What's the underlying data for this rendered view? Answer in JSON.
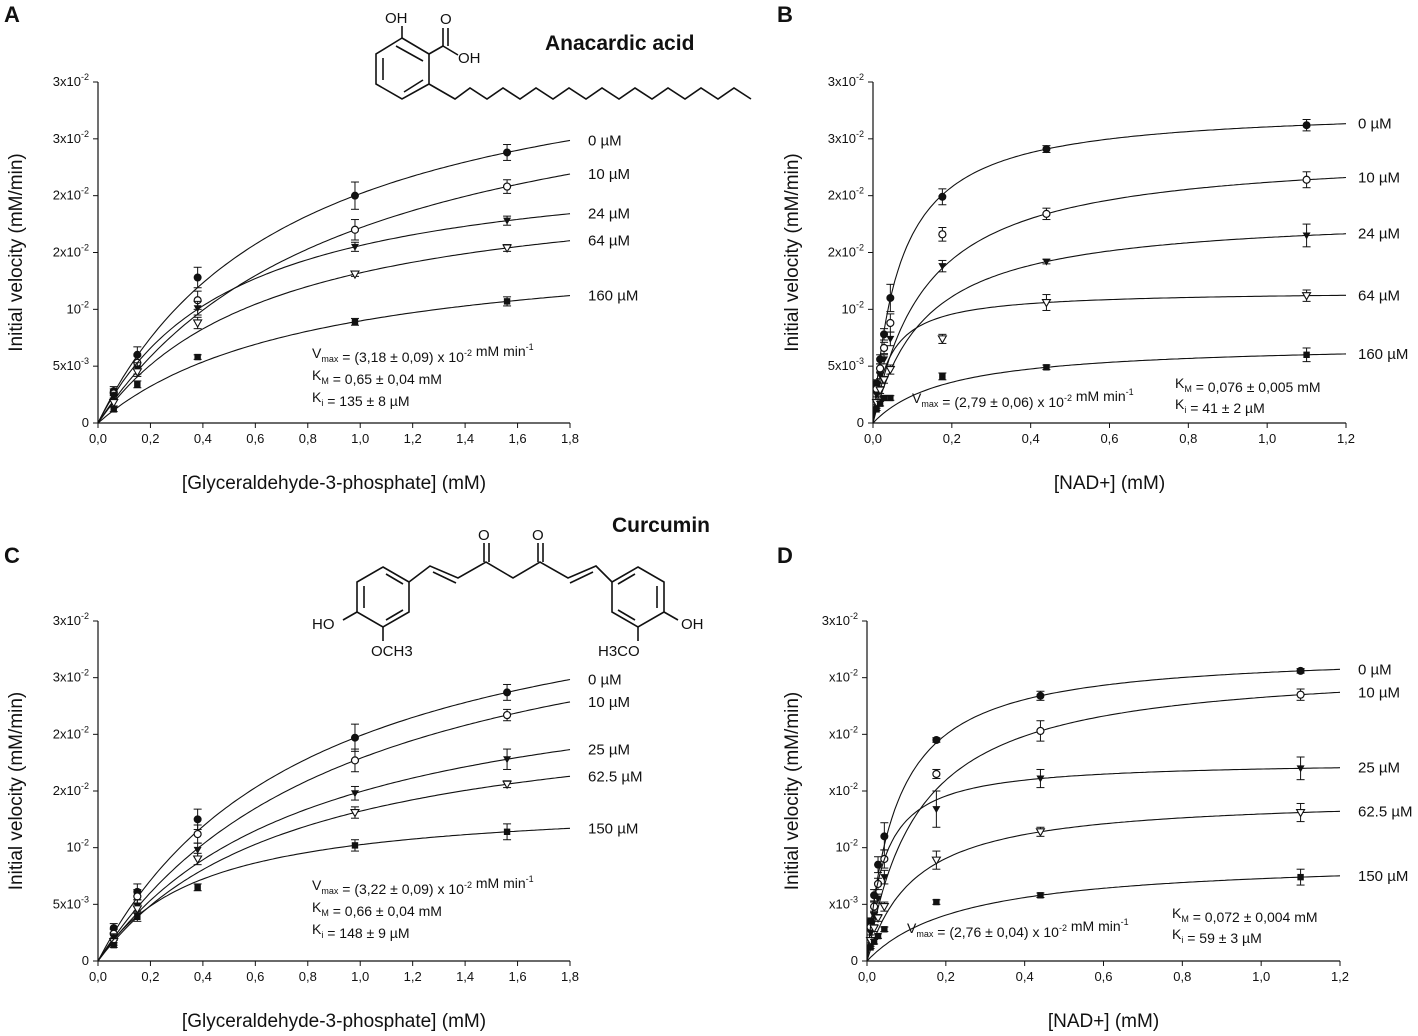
{
  "panels": [
    {
      "letter": "A",
      "compound": "Anacardic acid",
      "structure": {
        "oh": "OH",
        "cooh_o": "O",
        "cooh_oh": "OH"
      },
      "annotations": [
        "V_max = (3,18 ± 0,09) x 10^-2 mM min^-1",
        "K_M = 0,65 ± 0,04 mM",
        "K_i = 135 ± 8 µM"
      ],
      "chart_data": {
        "type": "scatter",
        "xlabel": "[Glyceraldehyde-3-phosphate] (mM)",
        "ylabel": "Initial velocity (mM/min)",
        "xlim": [
          0,
          1.8
        ],
        "ylim": [
          0,
          0.03
        ],
        "x_ticks": [
          "0,0",
          "0,2",
          "0,4",
          "0,6",
          "0,8",
          "1,0",
          "1,2",
          "1,4",
          "1,6",
          "1,8"
        ],
        "y_ticks": [
          "0",
          "5x10-3",
          "10-2",
          "2x10-2",
          "2x10-2",
          "3x10-2",
          "3x10-2"
        ],
        "series": [
          {
            "name": "0 µM",
            "marker": "filled-circle",
            "x": [
              0.06,
              0.15,
              0.38,
              0.98,
              1.56
            ],
            "y": [
              0.0028,
              0.006,
              0.0128,
              0.02,
              0.0238
            ],
            "err": [
              0.0004,
              0.0007,
              0.0009,
              0.0012,
              0.0007
            ]
          },
          {
            "name": "10 µM",
            "marker": "open-circle",
            "x": [
              0.06,
              0.15,
              0.38,
              0.98,
              1.56
            ],
            "y": [
              0.0026,
              0.0053,
              0.0108,
              0.017,
              0.0208
            ],
            "err": [
              0.0004,
              0.0006,
              0.0008,
              0.0009,
              0.0006
            ]
          },
          {
            "name": "24 µM",
            "marker": "filled-triangle",
            "x": [
              0.06,
              0.15,
              0.38,
              0.98,
              1.56
            ],
            "y": [
              0.0024,
              0.0048,
              0.0101,
              0.0155,
              0.0178
            ],
            "err": [
              0.0003,
              0.0005,
              0.0006,
              0.0004,
              0.0004
            ]
          },
          {
            "name": "64 µM",
            "marker": "open-triangle",
            "x": [
              0.06,
              0.15,
              0.38,
              0.98,
              1.56
            ],
            "y": [
              0.0018,
              0.0045,
              0.0088,
              0.0131,
              0.0154
            ],
            "err": [
              0.0003,
              0.0004,
              0.0005,
              0.0002,
              0.0003
            ]
          },
          {
            "name": "160 µM",
            "marker": "filled-square",
            "x": [
              0.06,
              0.15,
              0.38,
              0.98,
              1.56
            ],
            "y": [
              0.0012,
              0.0034,
              0.0058,
              0.0089,
              0.0107
            ],
            "err": [
              0.0002,
              0.0003,
              0.0002,
              0.0003,
              0.0004
            ]
          }
        ]
      }
    },
    {
      "letter": "B",
      "compound": "",
      "annotations": [
        "V_max = (2,79 ± 0,06) x 10^-2 mM min^-1",
        "K_M = 0,076 ± 0,005 mM",
        "K_i = 41 ± 2 µM"
      ],
      "chart_data": {
        "type": "scatter",
        "xlabel": "[NAD+] (mM)",
        "ylabel": "Initial velocity (mM/min)",
        "xlim": [
          0,
          1.2
        ],
        "ylim": [
          0,
          0.03
        ],
        "x_ticks": [
          "0,0",
          "0,2",
          "0,4",
          "0,6",
          "0,8",
          "1,0",
          "1,2"
        ],
        "y_ticks": [
          "0",
          "5x10-3",
          "10-2",
          "2x10-2",
          "2x10-2",
          "3x10-2",
          "3x10-2"
        ],
        "series": [
          {
            "name": "0 µM",
            "marker": "filled-circle",
            "x": [
              0.009,
              0.018,
              0.028,
              0.044,
              0.176,
              0.44,
              1.1
            ],
            "y": [
              0.0035,
              0.0056,
              0.0078,
              0.011,
              0.0199,
              0.0241,
              0.0262
            ],
            "err": [
              0.0003,
              0.0004,
              0.0005,
              0.0012,
              0.0007,
              0.0003,
              0.0005
            ]
          },
          {
            "name": "10 µM",
            "marker": "open-circle",
            "x": [
              0.009,
              0.018,
              0.028,
              0.044,
              0.176,
              0.44,
              1.1
            ],
            "y": [
              0.003,
              0.0048,
              0.0066,
              0.0088,
              0.0166,
              0.0184,
              0.0214
            ],
            "err": [
              0.0003,
              0.0004,
              0.0005,
              0.0008,
              0.0006,
              0.0005,
              0.0007
            ]
          },
          {
            "name": "24 µM",
            "marker": "filled-triangle",
            "x": [
              0.009,
              0.018,
              0.028,
              0.044,
              0.176,
              0.44,
              1.1
            ],
            "y": [
              0.0025,
              0.0042,
              0.0056,
              0.0074,
              0.0138,
              0.0142,
              0.0165
            ],
            "err": [
              0.0002,
              0.0003,
              0.0004,
              0.0006,
              0.0005,
              0.0002,
              0.001
            ]
          },
          {
            "name": "64 µM",
            "marker": "open-triangle",
            "x": [
              0.009,
              0.018,
              0.028,
              0.044,
              0.176,
              0.44,
              1.1
            ],
            "y": [
              0.0018,
              0.0029,
              0.0038,
              0.0047,
              0.0074,
              0.0106,
              0.0112
            ],
            "err": [
              0.0002,
              0.0003,
              0.0003,
              0.0004,
              0.0004,
              0.0007,
              0.0005
            ]
          },
          {
            "name": "160 µM",
            "marker": "filled-square",
            "x": [
              0.009,
              0.018,
              0.028,
              0.044,
              0.176,
              0.44,
              1.1
            ],
            "y": [
              0.0012,
              0.0017,
              0.0022,
              0.0022,
              0.0041,
              0.0049,
              0.006
            ],
            "err": [
              0.0001,
              0.0002,
              0.0002,
              0.0002,
              0.0003,
              0.0002,
              0.0006
            ]
          }
        ]
      }
    },
    {
      "letter": "C",
      "compound": "Curcumin",
      "structure": {
        "o1": "O",
        "o2": "O",
        "oh_left": "HO",
        "oh_right": "OH",
        "ome_left": "OCH3",
        "ome_right": "H3CO"
      },
      "annotations": [
        "V_max = (3,22 ± 0,09) x 10^-2 mM min^-1",
        "K_M = 0,66 ± 0,04 mM",
        "K_i = 148 ± 9 µM"
      ],
      "chart_data": {
        "type": "scatter",
        "xlabel": "[Glyceraldehyde-3-phosphate] (mM)",
        "ylabel": "Initial velocity (mM/min)",
        "xlim": [
          0,
          1.8
        ],
        "ylim": [
          0,
          0.03
        ],
        "x_ticks": [
          "0,0",
          "0,2",
          "0,4",
          "0,6",
          "0,8",
          "1,0",
          "1,2",
          "1,4",
          "1,6",
          "1,8"
        ],
        "y_ticks": [
          "0",
          "5x10-3",
          "10-2",
          "2x10-2",
          "2x10-2",
          "3x10-2",
          "3x10-2"
        ],
        "series": [
          {
            "name": "0 µM",
            "marker": "filled-circle",
            "x": [
              0.06,
              0.15,
              0.38,
              0.98,
              1.56
            ],
            "y": [
              0.0029,
              0.0061,
              0.0125,
              0.0197,
              0.0237
            ],
            "err": [
              0.0004,
              0.0007,
              0.0009,
              0.0012,
              0.0007
            ]
          },
          {
            "name": "10 µM",
            "marker": "open-circle",
            "x": [
              0.06,
              0.15,
              0.38,
              0.98,
              1.56
            ],
            "y": [
              0.0024,
              0.0057,
              0.0112,
              0.0177,
              0.0217
            ],
            "err": [
              0.0004,
              0.0006,
              0.0008,
              0.001,
              0.0005
            ]
          },
          {
            "name": "25 µM",
            "marker": "filled-triangle",
            "x": [
              0.06,
              0.15,
              0.38,
              0.98,
              1.56
            ],
            "y": [
              0.0021,
              0.0049,
              0.0098,
              0.0148,
              0.0178
            ],
            "err": [
              0.0003,
              0.0005,
              0.0006,
              0.0006,
              0.0009
            ]
          },
          {
            "name": "62.5 µM",
            "marker": "open-triangle",
            "x": [
              0.06,
              0.15,
              0.38,
              0.98,
              1.56
            ],
            "y": [
              0.0017,
              0.0046,
              0.009,
              0.0131,
              0.0156
            ],
            "err": [
              0.0003,
              0.0004,
              0.0005,
              0.0005,
              0.0003
            ]
          },
          {
            "name": "150 µM",
            "marker": "filled-square",
            "x": [
              0.06,
              0.15,
              0.38,
              0.98,
              1.56
            ],
            "y": [
              0.0014,
              0.0039,
              0.0065,
              0.0102,
              0.0114
            ],
            "err": [
              0.0002,
              0.0004,
              0.0003,
              0.0005,
              0.0007
            ]
          }
        ]
      }
    },
    {
      "letter": "D",
      "compound": "",
      "annotations": [
        "V_max = (2,76 ± 0,04) x 10^-2 mM min^-1",
        "K_M = 0,072 ± 0,004 mM",
        "K_i = 59 ± 3 µM"
      ],
      "chart_data": {
        "type": "scatter",
        "xlabel": "[NAD+] (mM)",
        "ylabel": "Initial velocity (mM/min)",
        "xlim": [
          0,
          1.2
        ],
        "ylim": [
          0,
          0.03
        ],
        "x_ticks": [
          "0,0",
          "0,2",
          "0,4",
          "0,6",
          "0,8",
          "1,0",
          "1,2"
        ],
        "y_ticks": [
          "0",
          "x10-3",
          "10-2",
          "x10-2",
          "x10-2",
          "x10-2",
          "3x10-2"
        ],
        "series": [
          {
            "name": "0 µM",
            "marker": "filled-circle",
            "x": [
              0.009,
              0.018,
              0.028,
              0.044,
              0.176,
              0.44,
              1.1
            ],
            "y": [
              0.0035,
              0.0058,
              0.0085,
              0.011,
              0.0195,
              0.0234,
              0.0256
            ],
            "err": [
              0.0003,
              0.0005,
              0.0007,
              0.0012,
              0.0002,
              0.0004,
              0.0002
            ]
          },
          {
            "name": "10 µM",
            "marker": "open-circle",
            "x": [
              0.009,
              0.018,
              0.028,
              0.044,
              0.176,
              0.44,
              1.1
            ],
            "y": [
              0.003,
              0.0048,
              0.0068,
              0.009,
              0.0165,
              0.0203,
              0.0235
            ],
            "err": [
              0.0003,
              0.0004,
              0.0005,
              0.0008,
              0.0004,
              0.0009,
              0.0005
            ]
          },
          {
            "name": "25 µM",
            "marker": "filled-triangle",
            "x": [
              0.009,
              0.018,
              0.028,
              0.044,
              0.176,
              0.44,
              1.1
            ],
            "y": [
              0.0025,
              0.004,
              0.0055,
              0.0074,
              0.0134,
              0.0161,
              0.017
            ],
            "err": [
              0.0002,
              0.0003,
              0.0004,
              0.0006,
              0.0016,
              0.0008,
              0.001
            ]
          },
          {
            "name": "62.5 µM",
            "marker": "open-triangle",
            "x": [
              0.009,
              0.018,
              0.028,
              0.044,
              0.176,
              0.44,
              1.1
            ],
            "y": [
              0.0018,
              0.0029,
              0.0038,
              0.0048,
              0.0089,
              0.0114,
              0.0131
            ],
            "err": [
              0.0002,
              0.0003,
              0.0003,
              0.0004,
              0.0008,
              0.0004,
              0.0008
            ]
          },
          {
            "name": "150 µM",
            "marker": "filled-square",
            "x": [
              0.009,
              0.018,
              0.028,
              0.044,
              0.176,
              0.44,
              1.1
            ],
            "y": [
              0.0012,
              0.0017,
              0.0022,
              0.0028,
              0.0052,
              0.0058,
              0.0074
            ],
            "err": [
              0.0001,
              0.0002,
              0.0002,
              0.0002,
              0.0002,
              0.0002,
              0.0007
            ]
          }
        ]
      }
    }
  ]
}
